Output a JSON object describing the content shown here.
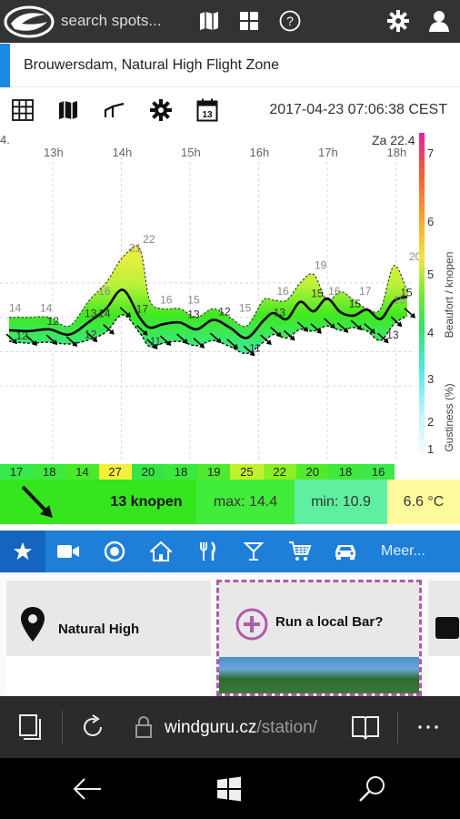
{
  "header": {
    "search_placeholder": "search spots...",
    "icons": [
      "windguru-logo",
      "map-icon",
      "grid-icon",
      "help-icon",
      "gear-icon",
      "user-icon"
    ]
  },
  "location": {
    "title": "Brouwersdam, Natural High Flight Zone"
  },
  "toolbar": {
    "icons": [
      "table-icon",
      "map-icon",
      "graph-icon",
      "gear-icon",
      "calendar-icon"
    ],
    "calendar_day": "13",
    "datetime": "2017-04-23 07:06:38 CEST"
  },
  "chart_data": {
    "type": "area",
    "title": "",
    "x_ticks": [
      "13h",
      "14h",
      "15h",
      "16h",
      "17h",
      "18h"
    ],
    "left_edge_label": "4.",
    "top_right_label": "Za 22.4",
    "beaufort_axis_label": "Beaufort / knopen",
    "gustiness_axis_label": "Gustiness (%)",
    "beaufort_ticks": [
      "1",
      "2",
      "3",
      "4",
      "5",
      "6",
      "7"
    ],
    "gust_labels": [
      {
        "t": 0.0,
        "v": "14"
      },
      {
        "t": 0.45,
        "v": "14"
      },
      {
        "t": 1.3,
        "v": "16"
      },
      {
        "t": 1.75,
        "v": "21"
      },
      {
        "t": 1.95,
        "v": "22"
      },
      {
        "t": 2.2,
        "v": "16"
      },
      {
        "t": 2.6,
        "v": "15"
      },
      {
        "t": 3.35,
        "v": "15"
      },
      {
        "t": 3.9,
        "v": "16"
      },
      {
        "t": 4.45,
        "v": "19"
      },
      {
        "t": 4.65,
        "v": "16"
      },
      {
        "t": 5.1,
        "v": "17"
      },
      {
        "t": 5.6,
        "v": "15"
      },
      {
        "t": 5.85,
        "v": "20"
      }
    ],
    "avg_labels": [
      {
        "t": 0.55,
        "v": "12"
      },
      {
        "t": 1.1,
        "v": "13"
      },
      {
        "t": 1.3,
        "v": "14"
      },
      {
        "t": 1.85,
        "v": "17"
      },
      {
        "t": 2.6,
        "v": "13"
      },
      {
        "t": 3.05,
        "v": "12"
      },
      {
        "t": 3.85,
        "v": "13"
      },
      {
        "t": 4.4,
        "v": "15"
      },
      {
        "t": 4.95,
        "v": "15"
      },
      {
        "t": 5.7,
        "v": "15"
      }
    ],
    "lull_labels": [
      {
        "t": 0.1,
        "v": "12"
      },
      {
        "t": 1.1,
        "v": "12"
      },
      {
        "t": 2.05,
        "v": "11"
      },
      {
        "t": 3.5,
        "v": "11"
      },
      {
        "t": 5.5,
        "v": "13"
      }
    ],
    "series": {
      "t": [
        0,
        0.3,
        0.6,
        0.9,
        1.2,
        1.45,
        1.7,
        1.95,
        2.1,
        2.3,
        2.55,
        2.8,
        3.05,
        3.3,
        3.55,
        3.8,
        3.95,
        4.15,
        4.35,
        4.55,
        4.75,
        4.95,
        5.15,
        5.35,
        5.55,
        5.75,
        5.95
      ],
      "gust": [
        14,
        14,
        14,
        13,
        16,
        18,
        21,
        22,
        16,
        15,
        15,
        14,
        15,
        14,
        13,
        16,
        16,
        16,
        18,
        19,
        16,
        17,
        16,
        15,
        15,
        20,
        17
      ],
      "avg": [
        12.5,
        12.4,
        12.6,
        12,
        13.5,
        15,
        17.2,
        14,
        12.8,
        13.2,
        13.4,
        12.6,
        13.7,
        12.8,
        11.6,
        13.6,
        14.5,
        13.8,
        15.8,
        14.7,
        16.2,
        14.6,
        14.2,
        14.9,
        13.8,
        15.9,
        16.4
      ],
      "lull": [
        11.2,
        11,
        11.1,
        10.9,
        11.4,
        12.3,
        14.3,
        12.2,
        10.6,
        11,
        11.2,
        10.7,
        11.3,
        10.6,
        9.8,
        11.1,
        12,
        11.6,
        12.6,
        12.4,
        13,
        12.5,
        12.8,
        12.4,
        11.3,
        13.2,
        14.2
      ]
    }
  },
  "strip": {
    "values": [
      "17",
      "18",
      "14",
      "27",
      "20",
      "18",
      "19",
      "25",
      "22",
      "20",
      "18",
      "16"
    ],
    "colors": [
      "#38e84b",
      "#3de83f",
      "#48ea2a",
      "#f6ef3a",
      "#37e445",
      "#3be83c",
      "#4fea2f",
      "#c4f12e",
      "#8cee24",
      "#51ea2f",
      "#40e83c",
      "#3ee84b"
    ]
  },
  "summary": {
    "speed": "13 knopen",
    "max": "max: 14.4",
    "min": "min: 10.9",
    "temp": "6.6 °C"
  },
  "nav": {
    "icons": [
      "star-icon",
      "video-icon",
      "target-icon",
      "home-icon",
      "restaurant-icon",
      "cocktail-icon",
      "cart-icon",
      "car-icon"
    ],
    "more_label": "Meer..."
  },
  "cards": {
    "card1_title": "Natural High",
    "card2_title": "Run a local Bar?"
  },
  "browser": {
    "url_main": "windguru.cz",
    "url_path": "/station/"
  }
}
